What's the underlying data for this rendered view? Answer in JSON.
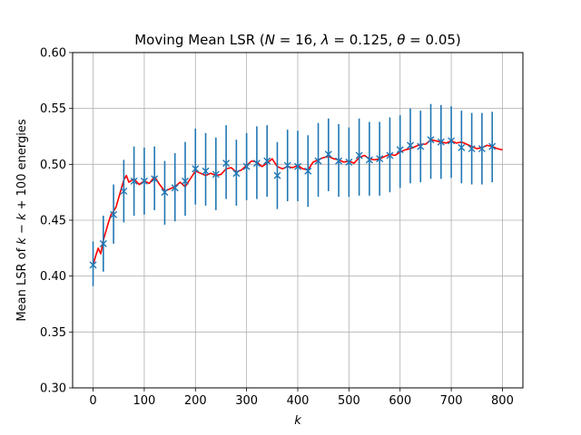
{
  "chart_data": {
    "type": "line",
    "title": "Moving Mean LSR (N = 16, λ = 0.125, θ = 0.05)",
    "title_parts": {
      "prefix": "Moving Mean LSR (",
      "N": "N",
      "eq1": " = 16, ",
      "lambda": "λ",
      "eq2": " = 0.125, ",
      "theta": "θ",
      "eq3": " = 0.05)"
    },
    "xlabel": "k",
    "ylabel": "Mean LSR of k − k + 100 energies",
    "ylabel_parts": {
      "prefix": "Mean LSR of ",
      "k1": "k",
      "minus": " − ",
      "k2": "k",
      "suffix": " + 100 energies"
    },
    "xlim": [
      -40,
      840
    ],
    "ylim": [
      0.3,
      0.6
    ],
    "grid": true,
    "colors": {
      "line": "#ff0000",
      "errorbar": "#1f77b4",
      "grid": "#b0b0b0"
    },
    "x_ticks": [
      {
        "value": 0,
        "label": "0"
      },
      {
        "value": 100,
        "label": "100"
      },
      {
        "value": 200,
        "label": "200"
      },
      {
        "value": 300,
        "label": "300"
      },
      {
        "value": 400,
        "label": "400"
      },
      {
        "value": 500,
        "label": "500"
      },
      {
        "value": 600,
        "label": "600"
      },
      {
        "value": 700,
        "label": "700"
      },
      {
        "value": 800,
        "label": "800"
      }
    ],
    "y_ticks": [
      {
        "value": 0.3,
        "label": "0.30"
      },
      {
        "value": 0.35,
        "label": "0.35"
      },
      {
        "value": 0.4,
        "label": "0.40"
      },
      {
        "value": 0.45,
        "label": "0.45"
      },
      {
        "value": 0.5,
        "label": "0.50"
      },
      {
        "value": 0.55,
        "label": "0.55"
      },
      {
        "value": 0.6,
        "label": "0.60"
      }
    ],
    "series": [
      {
        "name": "moving mean (line)",
        "x": [
          0,
          5,
          10,
          15,
          20,
          25,
          30,
          35,
          40,
          45,
          50,
          55,
          60,
          65,
          70,
          80,
          90,
          100,
          110,
          120,
          130,
          140,
          150,
          160,
          170,
          180,
          190,
          200,
          210,
          220,
          230,
          240,
          250,
          260,
          270,
          280,
          290,
          300,
          310,
          320,
          330,
          340,
          350,
          360,
          370,
          380,
          390,
          400,
          410,
          420,
          430,
          440,
          450,
          460,
          470,
          480,
          490,
          500,
          510,
          520,
          530,
          540,
          550,
          560,
          570,
          580,
          590,
          600,
          610,
          620,
          630,
          640,
          650,
          660,
          670,
          680,
          690,
          700,
          710,
          720,
          730,
          740,
          750,
          760,
          770,
          780,
          790,
          800
        ],
        "values": [
          0.41,
          0.418,
          0.425,
          0.42,
          0.432,
          0.44,
          0.448,
          0.455,
          0.458,
          0.462,
          0.47,
          0.478,
          0.486,
          0.49,
          0.484,
          0.487,
          0.482,
          0.485,
          0.483,
          0.489,
          0.482,
          0.476,
          0.478,
          0.48,
          0.484,
          0.48,
          0.487,
          0.494,
          0.492,
          0.49,
          0.492,
          0.49,
          0.491,
          0.496,
          0.497,
          0.493,
          0.495,
          0.499,
          0.503,
          0.502,
          0.498,
          0.501,
          0.505,
          0.498,
          0.496,
          0.498,
          0.497,
          0.499,
          0.496,
          0.495,
          0.502,
          0.504,
          0.506,
          0.507,
          0.505,
          0.504,
          0.502,
          0.503,
          0.501,
          0.506,
          0.508,
          0.505,
          0.504,
          0.505,
          0.507,
          0.509,
          0.508,
          0.511,
          0.513,
          0.514,
          0.516,
          0.518,
          0.518,
          0.522,
          0.521,
          0.52,
          0.519,
          0.521,
          0.519,
          0.52,
          0.518,
          0.516,
          0.514,
          0.515,
          0.517,
          0.516,
          0.514,
          0.513
        ]
      },
      {
        "name": "sampled points (x markers with error bars)",
        "x": [
          0,
          20,
          40,
          60,
          80,
          100,
          120,
          140,
          160,
          180,
          200,
          220,
          240,
          260,
          280,
          300,
          320,
          340,
          360,
          380,
          400,
          420,
          440,
          460,
          480,
          500,
          520,
          540,
          560,
          580,
          600,
          620,
          640,
          660,
          680,
          700,
          720,
          740,
          760,
          780
        ],
        "values": [
          0.41,
          0.429,
          0.455,
          0.476,
          0.485,
          0.485,
          0.487,
          0.475,
          0.479,
          0.485,
          0.496,
          0.494,
          0.491,
          0.501,
          0.492,
          0.498,
          0.501,
          0.503,
          0.49,
          0.499,
          0.498,
          0.494,
          0.503,
          0.509,
          0.503,
          0.502,
          0.508,
          0.504,
          0.505,
          0.508,
          0.513,
          0.517,
          0.516,
          0.522,
          0.52,
          0.521,
          0.515,
          0.514,
          0.514,
          0.516
        ],
        "err_low": [
          0.391,
          0.404,
          0.429,
          0.448,
          0.454,
          0.455,
          0.459,
          0.446,
          0.449,
          0.454,
          0.464,
          0.463,
          0.459,
          0.469,
          0.463,
          0.468,
          0.469,
          0.471,
          0.46,
          0.467,
          0.467,
          0.462,
          0.471,
          0.476,
          0.471,
          0.471,
          0.472,
          0.472,
          0.472,
          0.475,
          0.479,
          0.483,
          0.484,
          0.487,
          0.487,
          0.488,
          0.483,
          0.482,
          0.482,
          0.484
        ],
        "err_high": [
          0.431,
          0.454,
          0.482,
          0.504,
          0.516,
          0.515,
          0.516,
          0.503,
          0.51,
          0.52,
          0.532,
          0.528,
          0.524,
          0.535,
          0.522,
          0.528,
          0.534,
          0.535,
          0.52,
          0.531,
          0.53,
          0.526,
          0.537,
          0.541,
          0.536,
          0.533,
          0.541,
          0.538,
          0.538,
          0.542,
          0.544,
          0.55,
          0.548,
          0.554,
          0.553,
          0.552,
          0.548,
          0.546,
          0.546,
          0.547
        ]
      }
    ]
  }
}
